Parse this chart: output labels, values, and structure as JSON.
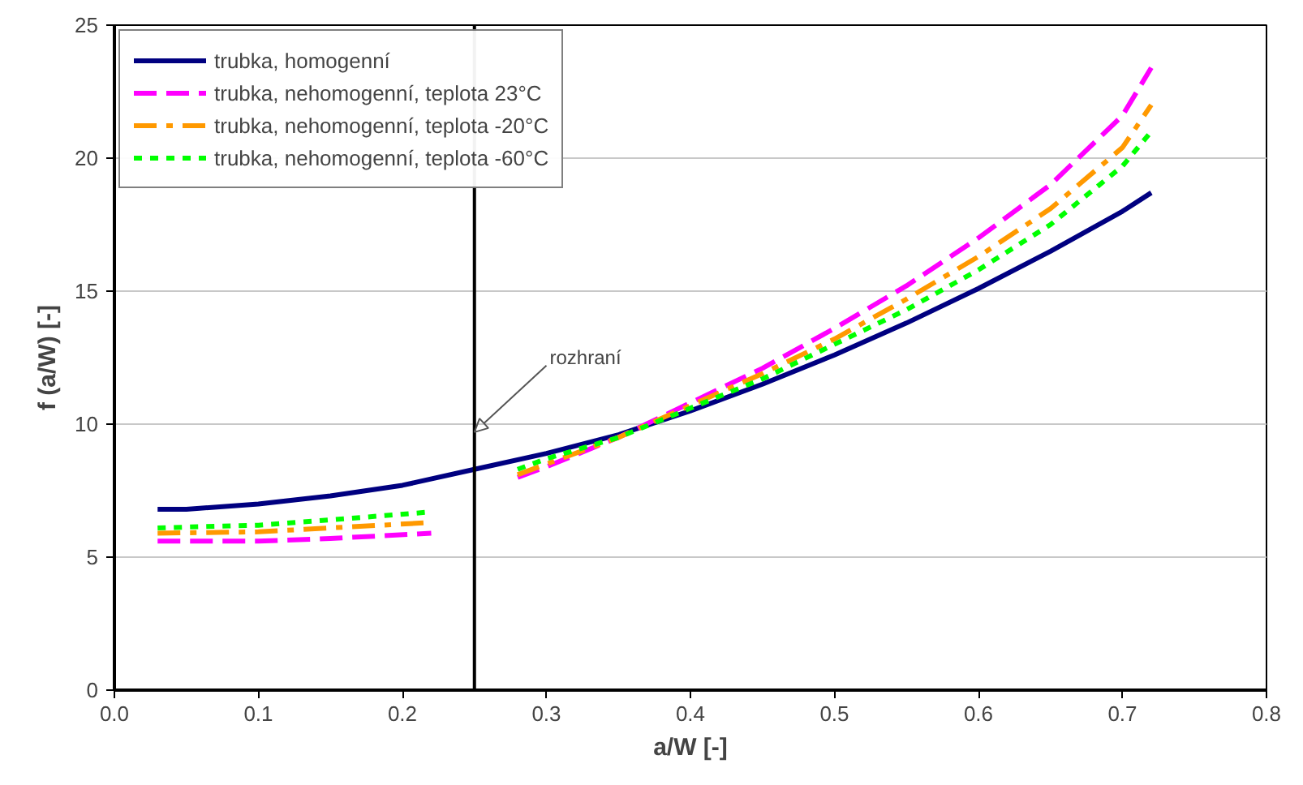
{
  "chart_data": {
    "type": "line",
    "xlabel": "a/W [-]",
    "ylabel": "f (a/W) [-]",
    "xlim": [
      0,
      0.8
    ],
    "ylim": [
      0,
      25
    ],
    "xticks": [
      {
        "value": 0,
        "label": "0.0"
      },
      0.1,
      0.2,
      0.3,
      0.4,
      0.5,
      0.6,
      0.7,
      0.8
    ],
    "yticks": [
      0,
      5,
      10,
      15,
      20,
      25
    ],
    "grid": "y",
    "legend": "top left",
    "series": [
      {
        "name": "trubka, homogenní",
        "color": "#000080",
        "line_style": "solid",
        "x": [
          0.03,
          0.05,
          0.1,
          0.15,
          0.2,
          0.25,
          0.3,
          0.35,
          0.4,
          0.45,
          0.5,
          0.55,
          0.6,
          0.65,
          0.7,
          0.72
        ],
        "values": [
          6.8,
          6.8,
          7.0,
          7.3,
          7.7,
          8.3,
          8.9,
          9.6,
          10.5,
          11.5,
          12.6,
          13.8,
          15.1,
          16.5,
          18.0,
          18.7
        ]
      },
      {
        "name": "trubka, nehomogenní, teplota 23°C",
        "color": "#ff00ff",
        "line_style": "dashed",
        "x": [
          0.03,
          0.1,
          0.15,
          0.22,
          0.25,
          0.28,
          0.3,
          0.35,
          0.4,
          0.45,
          0.5,
          0.55,
          0.6,
          0.65,
          0.7,
          0.72
        ],
        "values": [
          5.6,
          5.6,
          5.7,
          5.9,
          null,
          8.0,
          8.4,
          9.5,
          10.8,
          12.1,
          13.6,
          15.2,
          17.0,
          19.0,
          21.6,
          23.4
        ]
      },
      {
        "name": "trubka, nehomogenní, teplota -20°C",
        "color": "#ff9900",
        "line_style": "dashdot",
        "x": [
          0.03,
          0.1,
          0.15,
          0.22,
          0.25,
          0.28,
          0.3,
          0.35,
          0.4,
          0.45,
          0.5,
          0.55,
          0.6,
          0.65,
          0.7,
          0.72
        ],
        "values": [
          5.9,
          5.95,
          6.1,
          6.3,
          null,
          8.1,
          8.5,
          9.5,
          10.7,
          11.9,
          13.2,
          14.7,
          16.3,
          18.1,
          20.4,
          22.0
        ]
      },
      {
        "name": "trubka, nehomogenní, teplota -60°C",
        "color": "#00ff00",
        "line_style": "dotted",
        "x": [
          0.03,
          0.1,
          0.15,
          0.22,
          0.25,
          0.28,
          0.3,
          0.35,
          0.4,
          0.45,
          0.5,
          0.55,
          0.6,
          0.65,
          0.7,
          0.72
        ],
        "values": [
          6.1,
          6.2,
          6.4,
          6.7,
          null,
          8.3,
          8.7,
          9.5,
          10.6,
          11.7,
          13.0,
          14.3,
          15.8,
          17.5,
          19.7,
          21.0
        ]
      }
    ],
    "ref_lines": [
      {
        "axis": "x",
        "value": 0.25,
        "color": "#000000",
        "line_style": "solid"
      }
    ],
    "annotations": [
      {
        "text": "rozhraní",
        "x": 0.25,
        "y": 9.7
      }
    ]
  }
}
